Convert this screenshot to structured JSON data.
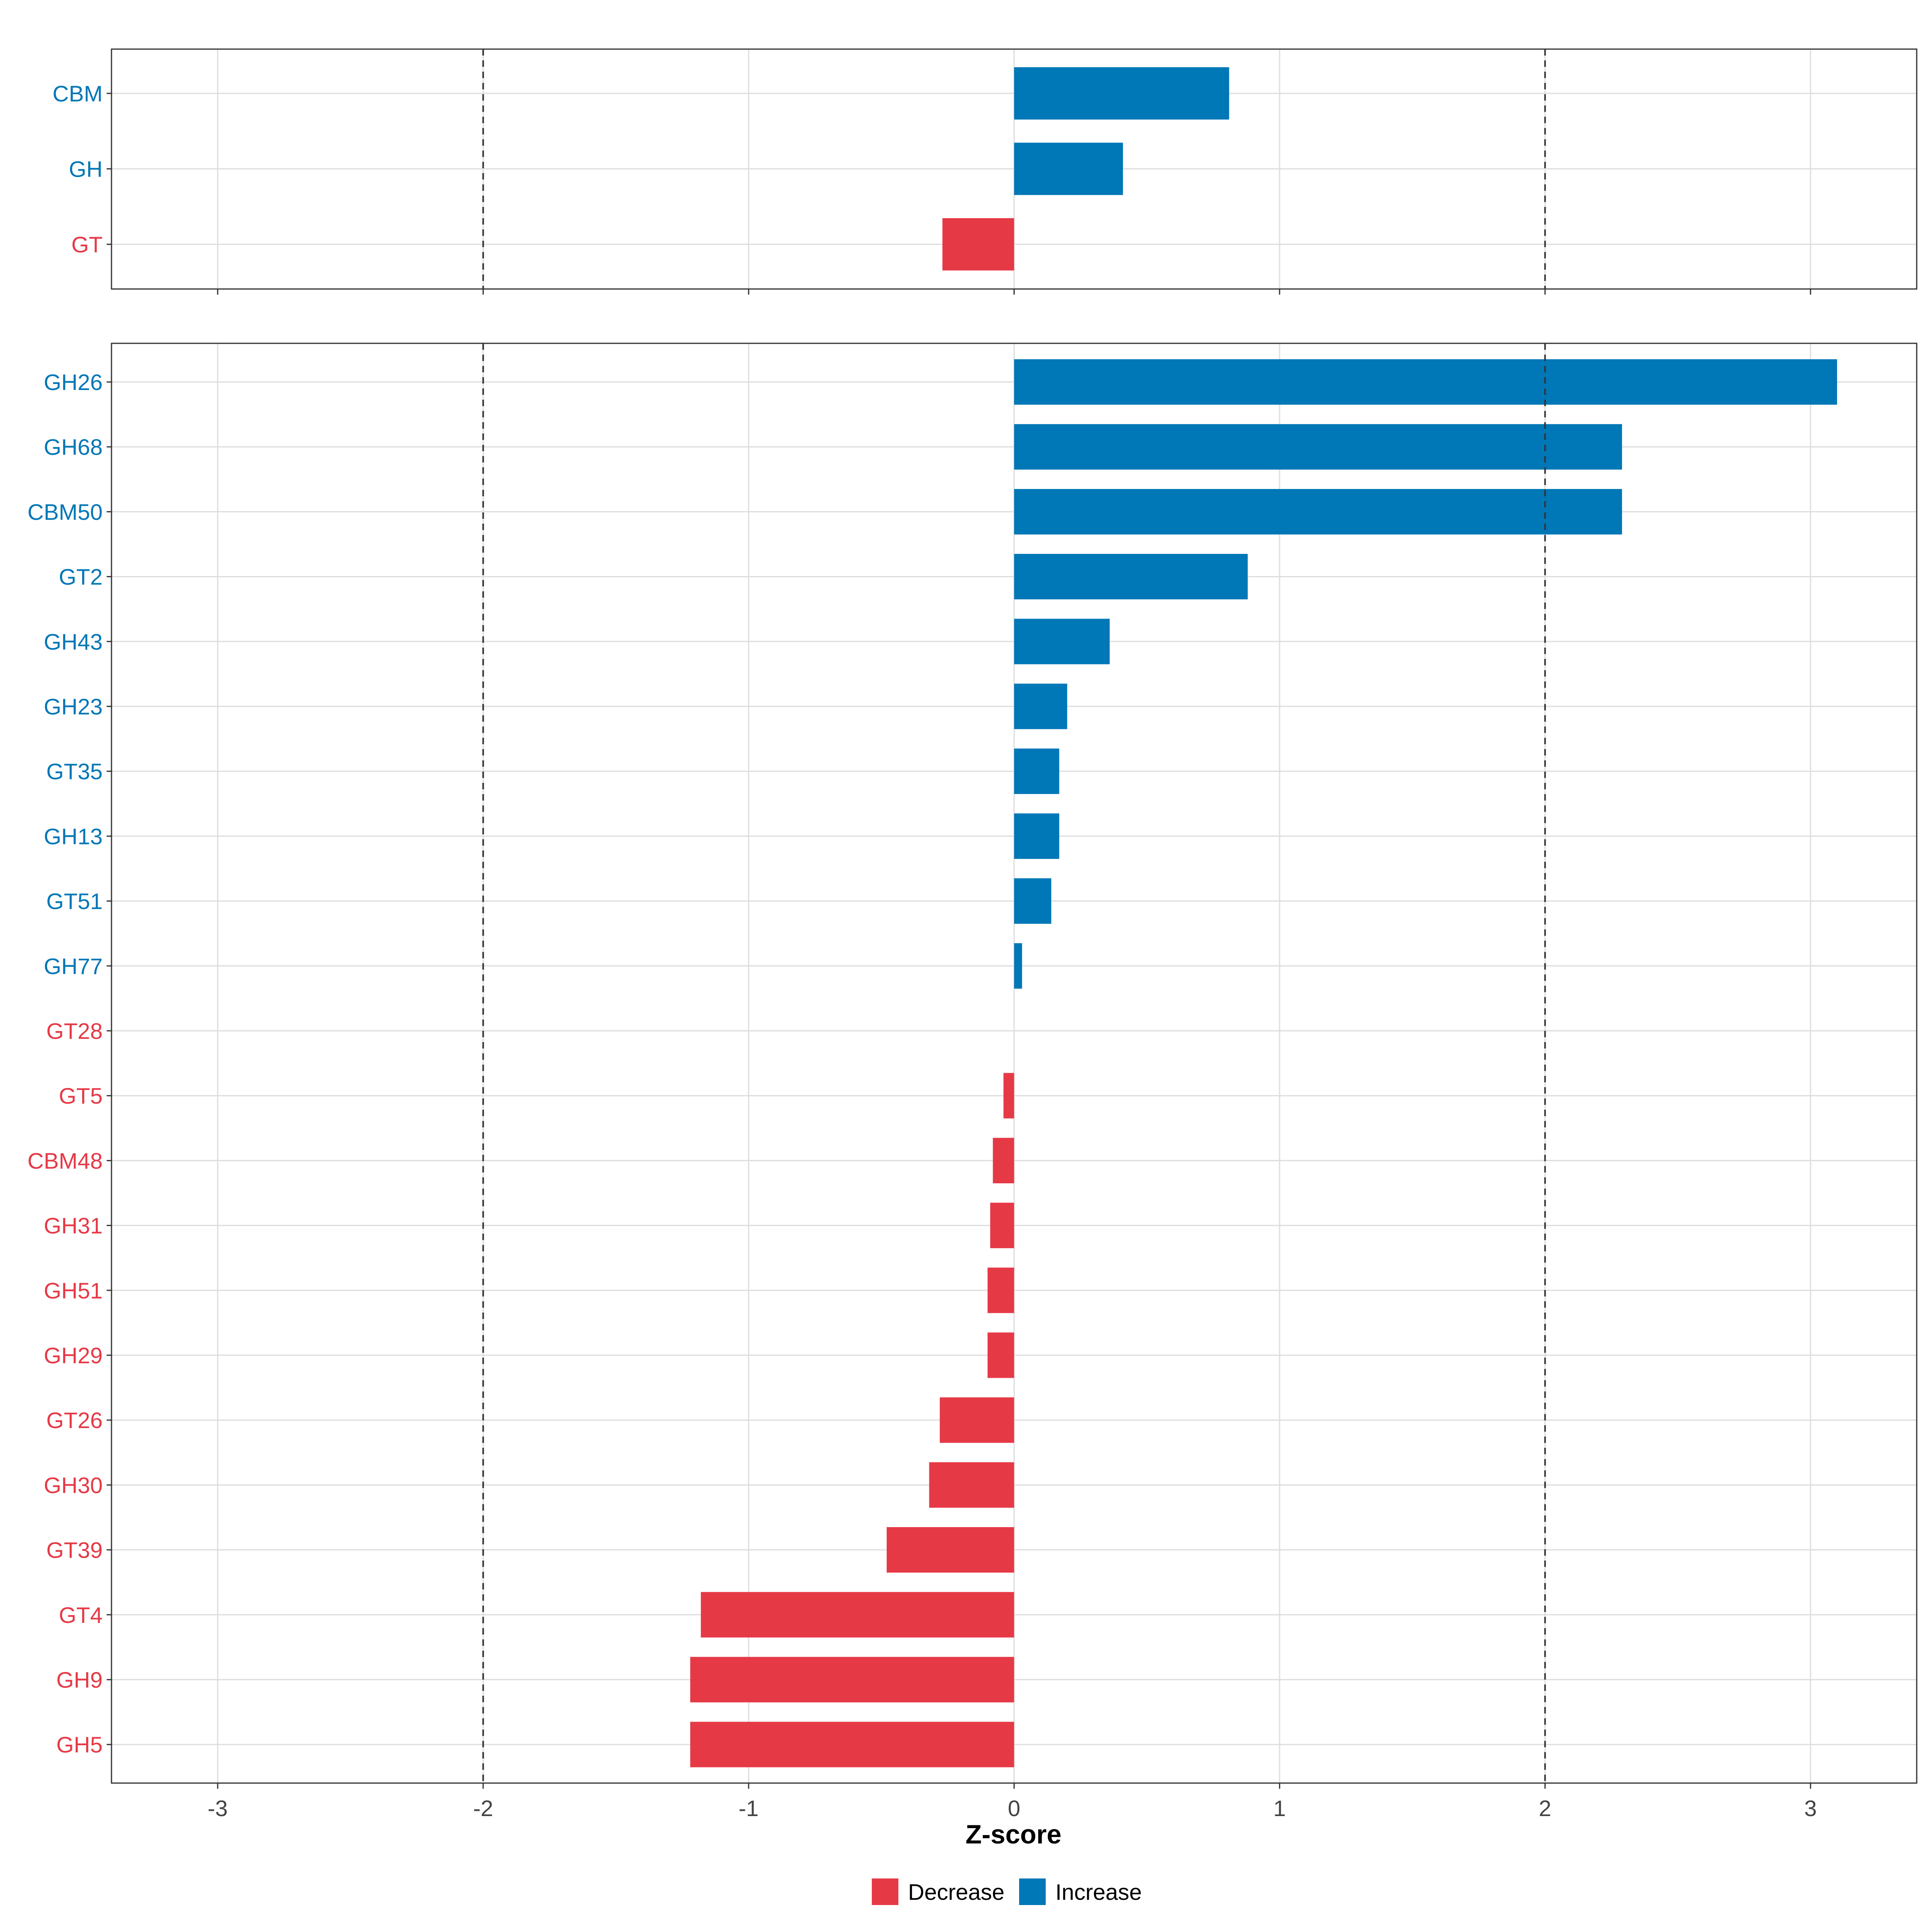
{
  "chart_data": {
    "type": "bar",
    "orientation": "horizontal",
    "xlabel": "Z-score",
    "xlim": [
      -3.4,
      3.4
    ],
    "xticks": [
      -3,
      -2,
      -1,
      0,
      1,
      2,
      3
    ],
    "reference_lines": [
      -2,
      2
    ],
    "colors": {
      "Decrease": "#e63946",
      "Increase": "#0077b6"
    },
    "legend": {
      "placement": "bottom",
      "entries": [
        "Decrease",
        "Increase"
      ]
    },
    "panels": [
      {
        "name": "category",
        "bars": [
          {
            "label": "CBM",
            "value": 0.81,
            "direction": "Increase"
          },
          {
            "label": "GH",
            "value": 0.41,
            "direction": "Increase"
          },
          {
            "label": "GT",
            "value": -0.27,
            "direction": "Decrease"
          }
        ]
      },
      {
        "name": "family",
        "bars": [
          {
            "label": "GH26",
            "value": 3.1,
            "direction": "Increase"
          },
          {
            "label": "GH68",
            "value": 2.29,
            "direction": "Increase"
          },
          {
            "label": "CBM50",
            "value": 2.29,
            "direction": "Increase"
          },
          {
            "label": "GT2",
            "value": 0.88,
            "direction": "Increase"
          },
          {
            "label": "GH43",
            "value": 0.36,
            "direction": "Increase"
          },
          {
            "label": "GH23",
            "value": 0.2,
            "direction": "Increase"
          },
          {
            "label": "GT35",
            "value": 0.17,
            "direction": "Increase"
          },
          {
            "label": "GH13",
            "value": 0.17,
            "direction": "Increase"
          },
          {
            "label": "GT51",
            "value": 0.14,
            "direction": "Increase"
          },
          {
            "label": "GH77",
            "value": 0.03,
            "direction": "Increase"
          },
          {
            "label": "GT28",
            "value": 0.0,
            "direction": "Decrease"
          },
          {
            "label": "GT5",
            "value": -0.04,
            "direction": "Decrease"
          },
          {
            "label": "CBM48",
            "value": -0.08,
            "direction": "Decrease"
          },
          {
            "label": "GH31",
            "value": -0.09,
            "direction": "Decrease"
          },
          {
            "label": "GH51",
            "value": -0.1,
            "direction": "Decrease"
          },
          {
            "label": "GH29",
            "value": -0.1,
            "direction": "Decrease"
          },
          {
            "label": "GT26",
            "value": -0.28,
            "direction": "Decrease"
          },
          {
            "label": "GH30",
            "value": -0.32,
            "direction": "Decrease"
          },
          {
            "label": "GT39",
            "value": -0.48,
            "direction": "Decrease"
          },
          {
            "label": "GT4",
            "value": -1.18,
            "direction": "Decrease"
          },
          {
            "label": "GH9",
            "value": -1.22,
            "direction": "Decrease"
          },
          {
            "label": "GH5",
            "value": -1.22,
            "direction": "Decrease"
          }
        ]
      }
    ]
  }
}
